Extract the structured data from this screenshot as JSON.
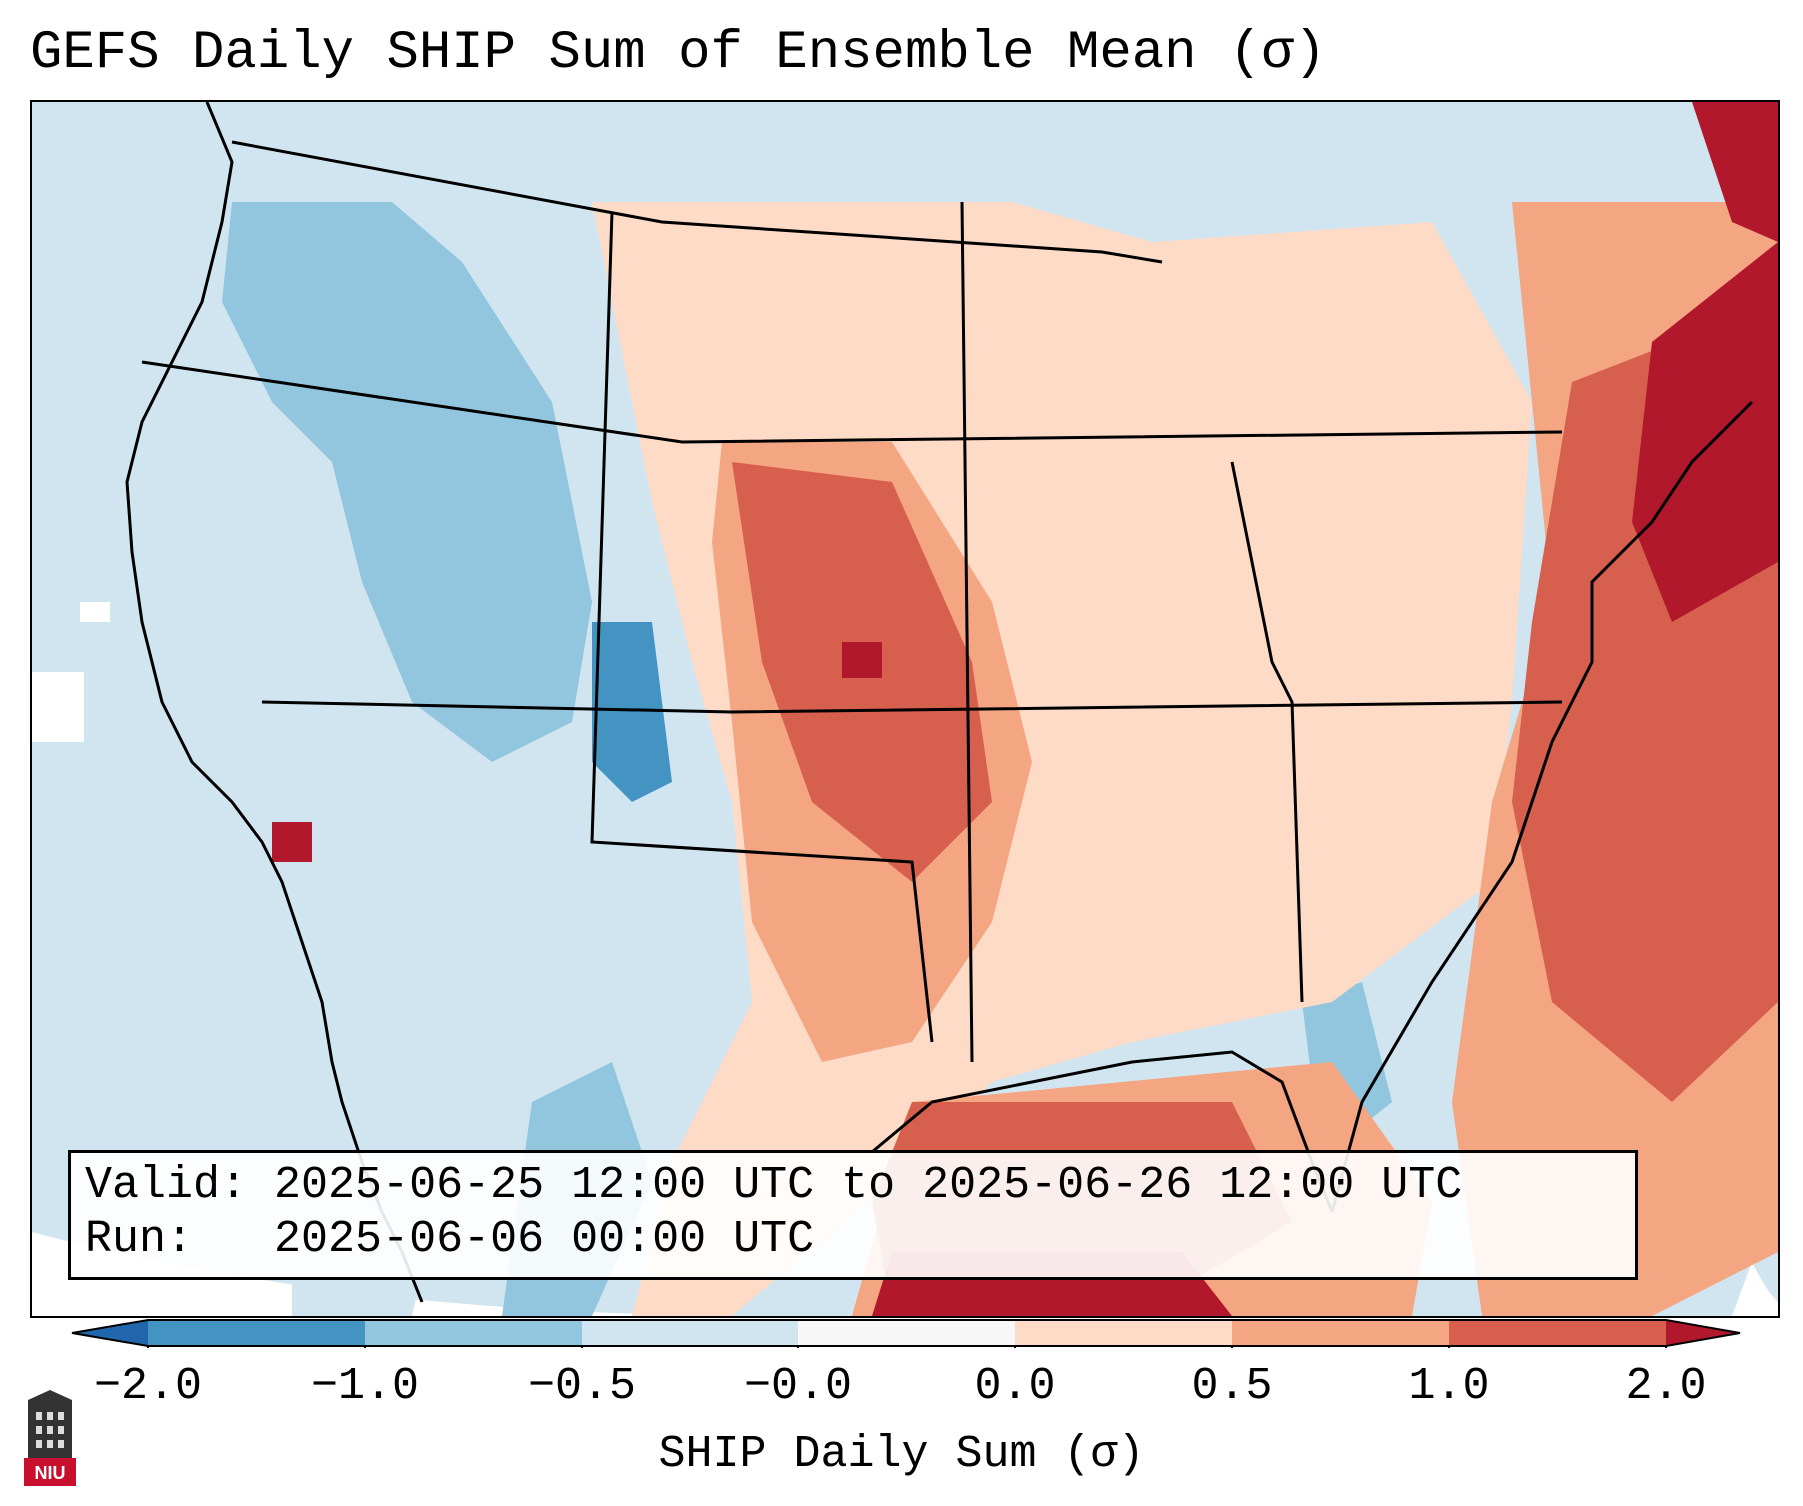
{
  "title": "GEFS Daily SHIP Sum of Ensemble Mean (σ)",
  "info": {
    "valid_label": "Valid:",
    "valid_value": "2025-06-25 12:00 UTC to 2025-06-26 12:00 UTC",
    "run_label": "Run:",
    "run_value": "2025-06-06 00:00 UTC"
  },
  "colorbar": {
    "label": "SHIP Daily Sum (σ)",
    "ticks": [
      "−2.0",
      "−1.0",
      "−0.5",
      "−0.0",
      "0.0",
      "0.5",
      "1.0",
      "2.0"
    ],
    "colors": [
      "#4393c3",
      "#92c5de",
      "#d1e5f0",
      "#f7f7f7",
      "#fddbc7",
      "#f4a582",
      "#d6604d"
    ],
    "extend_low_color": "#2166ac",
    "extend_high_color": "#b2182b"
  },
  "logo": {
    "text": "NIU",
    "name": "Northern Illinois University"
  }
}
